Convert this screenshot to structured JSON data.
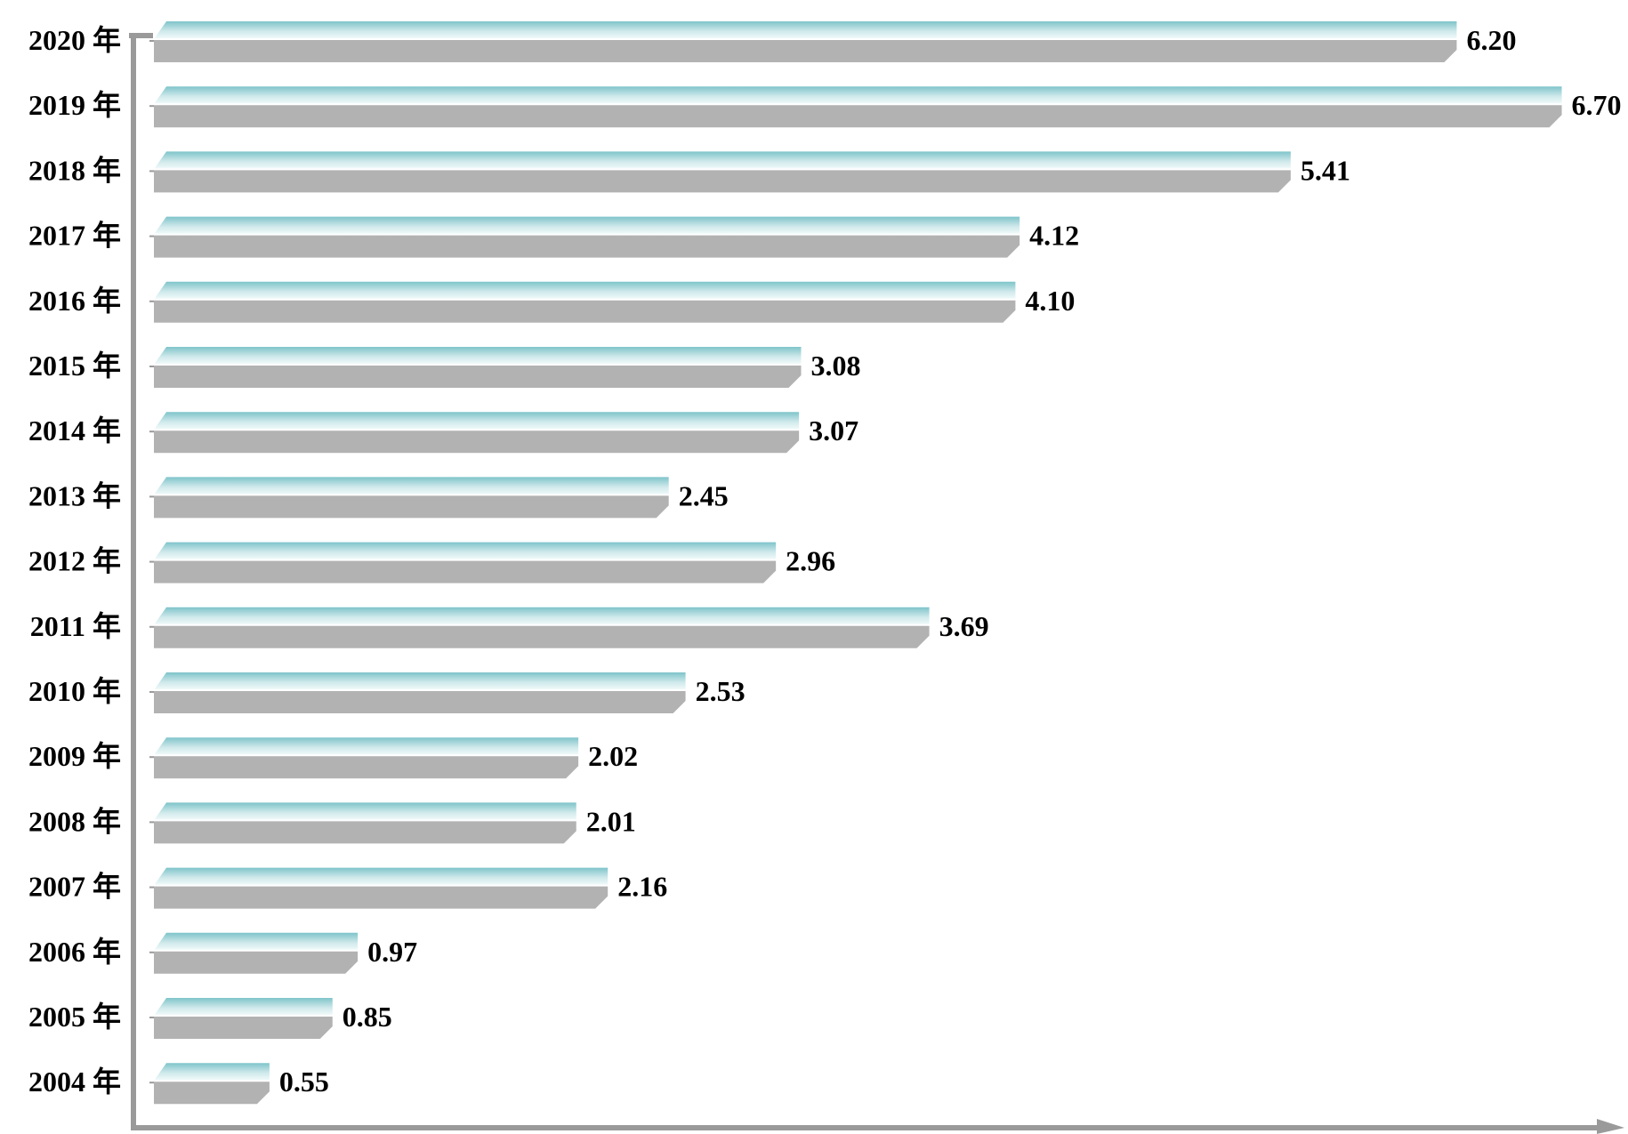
{
  "chart_data": {
    "type": "bar",
    "orientation": "horizontal",
    "categories": [
      "2020 年",
      "2019 年",
      "2018 年",
      "2017 年",
      "2016 年",
      "2015 年",
      "2014 年",
      "2013 年",
      "2012 年",
      "2011 年",
      "2010 年",
      "2009 年",
      "2008 年",
      "2007 年",
      "2006 年",
      "2005 年",
      "2004 年"
    ],
    "values": [
      6.2,
      6.7,
      5.41,
      4.12,
      4.1,
      3.08,
      3.07,
      2.45,
      2.96,
      3.69,
      2.53,
      2.02,
      2.01,
      2.16,
      0.97,
      0.85,
      0.55
    ],
    "value_labels": [
      "6.20",
      "6.70",
      "5.41",
      "4.12",
      "4.10",
      "3.08",
      "3.07",
      "2.45",
      "2.96",
      "3.69",
      "2.53",
      "2.02",
      "2.01",
      "2.16",
      "0.97",
      "0.85",
      "0.55"
    ],
    "title": "",
    "xlabel": "",
    "ylabel": "",
    "xlim": [
      0,
      7.1
    ],
    "grid": false,
    "legend": "none",
    "colors": {
      "bar_top_teal": "#7ec4ca",
      "bar_top_light": "#f2fafa",
      "bar_body": "#b2b2b2",
      "axis": "#9a9a9a",
      "text": "#000000"
    }
  }
}
